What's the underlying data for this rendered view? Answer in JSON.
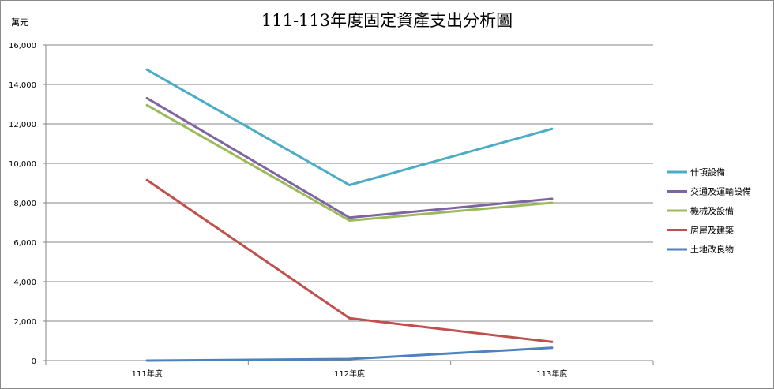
{
  "chart_data": {
    "type": "line",
    "title": "111-113年度固定資產支出分析圖",
    "ylabel": "萬元",
    "xlabel": "",
    "categories": [
      "111年度",
      "112年度",
      "113年度"
    ],
    "ylim": [
      0,
      16000
    ],
    "yticks": [
      0,
      2000,
      4000,
      6000,
      8000,
      10000,
      12000,
      14000,
      16000
    ],
    "ytick_labels": [
      "0",
      "2,000",
      "4,000",
      "6,000",
      "8,000",
      "10,000",
      "12,000",
      "14,000",
      "16,000"
    ],
    "grid": "horizontal",
    "legend_position": "right",
    "series": [
      {
        "name": "什項設備",
        "color": "#4bacc6",
        "values": [
          14750,
          8900,
          11750
        ]
      },
      {
        "name": "交通及運輸設備",
        "color": "#8064a2",
        "values": [
          13300,
          7250,
          8200
        ]
      },
      {
        "name": "機械及設備",
        "color": "#9bbb59",
        "values": [
          12950,
          7100,
          8000
        ]
      },
      {
        "name": "房屋及建築",
        "color": "#c0504d",
        "values": [
          9150,
          2150,
          950
        ]
      },
      {
        "name": "土地改良物",
        "color": "#4f81bd",
        "values": [
          0,
          80,
          650
        ]
      }
    ]
  }
}
